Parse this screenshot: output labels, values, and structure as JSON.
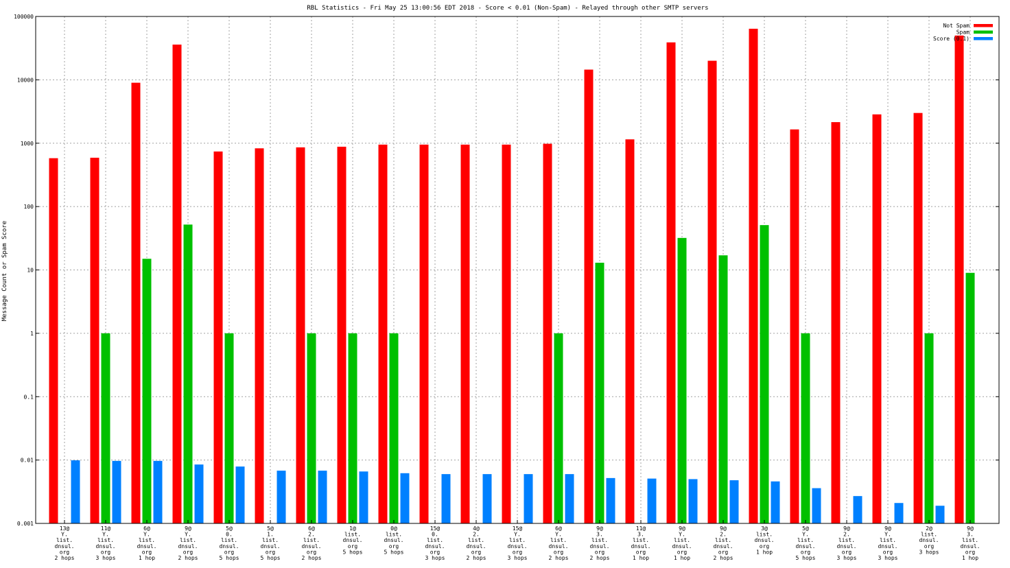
{
  "chart_data": {
    "type": "bar",
    "title": "RBL Statistics - Fri May 25 13:00:56 EDT 2018 - Score < 0.01 (Non-Spam) - Relayed through other SMTP servers",
    "ylabel": "Message Count or Spam Score",
    "xlabel": "",
    "yscale": "log",
    "ylim": [
      0.001,
      100000
    ],
    "yticks": [
      "0.001",
      "0.01",
      "0.1",
      "1",
      "10",
      "100",
      "1000",
      "10000",
      "100000"
    ],
    "grid": true,
    "legend_position": "top-right",
    "categories": [
      [
        "13@",
        "Y.",
        "list.",
        "dnsul.",
        "org",
        "2 hops"
      ],
      [
        "11@",
        "Y.",
        "list.",
        "dnsul.",
        "org",
        "3 hops"
      ],
      [
        "6@",
        "Y.",
        "list.",
        "dnsul.",
        "org",
        "1 hop"
      ],
      [
        "9@",
        "Y.",
        "list.",
        "dnsul.",
        "org",
        "2 hops"
      ],
      [
        "5@",
        "0.",
        "list.",
        "dnsul.",
        "org",
        "5 hops"
      ],
      [
        "5@",
        "1.",
        "list.",
        "dnsul.",
        "org",
        "5 hops"
      ],
      [
        "6@",
        "2.",
        "list.",
        "dnsul.",
        "org",
        "2 hops"
      ],
      [
        "1@",
        "list.",
        "dnsul.",
        "org",
        "5 hops"
      ],
      [
        "0@",
        "list.",
        "dnsul.",
        "org",
        "5 hops"
      ],
      [
        "15@",
        "0.",
        "list.",
        "dnsul.",
        "org",
        "3 hops"
      ],
      [
        "4@",
        "2.",
        "list.",
        "dnsul.",
        "org",
        "2 hops"
      ],
      [
        "15@",
        "Y.",
        "list.",
        "dnsul.",
        "org",
        "3 hops"
      ],
      [
        "6@",
        "Y.",
        "list.",
        "dnsul.",
        "org",
        "2 hops"
      ],
      [
        "9@",
        "3.",
        "list.",
        "dnsul.",
        "org",
        "2 hops"
      ],
      [
        "11@",
        "3.",
        "list.",
        "dnsul.",
        "org",
        "1 hop"
      ],
      [
        "9@",
        "Y.",
        "list.",
        "dnsul.",
        "org",
        "1 hop"
      ],
      [
        "9@",
        "2.",
        "list.",
        "dnsul.",
        "org",
        "2 hops"
      ],
      [
        "3@",
        "list.",
        "dnsul.",
        "org",
        "1 hop"
      ],
      [
        "5@",
        "Y.",
        "list.",
        "dnsul.",
        "org",
        "5 hops"
      ],
      [
        "9@",
        "2.",
        "list.",
        "dnsul.",
        "org",
        "3 hops"
      ],
      [
        "9@",
        "Y.",
        "list.",
        "dnsul.",
        "org",
        "3 hops"
      ],
      [
        "2@",
        "list.",
        "dnsul.",
        "org",
        "3 hops"
      ],
      [
        "9@",
        "3.",
        "list.",
        "dnsul.",
        "org",
        "1 hop"
      ]
    ],
    "series": [
      {
        "name": "Not Spam",
        "color": "#ff0000",
        "values": [
          580,
          590,
          9000,
          36000,
          740,
          830,
          860,
          880,
          950,
          950,
          950,
          950,
          980,
          14500,
          1150,
          39000,
          20000,
          64000,
          1650,
          2150,
          2850,
          3000,
          50000
        ]
      },
      {
        "name": "Spam",
        "color": "#00c000",
        "values": [
          null,
          1,
          15,
          52,
          1,
          null,
          1,
          1,
          1,
          null,
          null,
          null,
          1,
          13,
          null,
          32,
          17,
          51,
          1,
          null,
          null,
          1,
          9
        ]
      },
      {
        "name": "Score (0.1)",
        "color": "#0080ff",
        "values": [
          0.0099,
          0.0097,
          0.0097,
          0.0085,
          0.0079,
          0.0068,
          0.0068,
          0.0066,
          0.0062,
          0.006,
          0.006,
          0.006,
          0.006,
          0.0052,
          0.0051,
          0.005,
          0.0048,
          0.0046,
          0.0036,
          0.0027,
          0.0021,
          0.0019,
          null
        ]
      }
    ]
  }
}
